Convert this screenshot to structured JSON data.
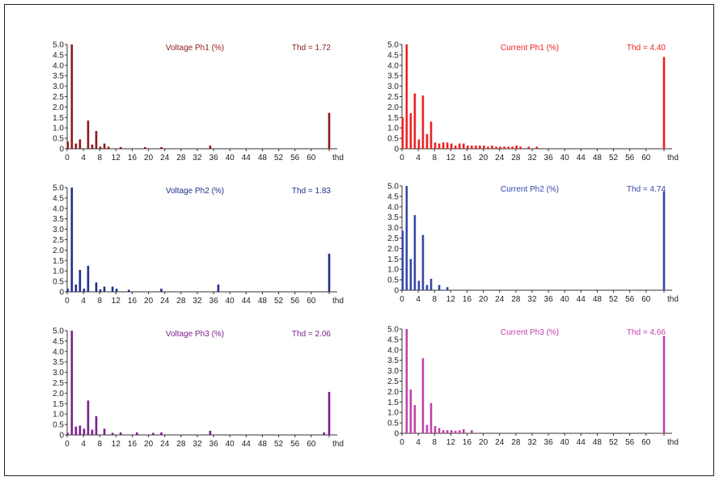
{
  "chart_data": [
    {
      "type": "bar",
      "id": "voltage-ph1",
      "title": "Voltage Ph1 (%)",
      "thd_label": "Thd = 1.72",
      "color": "#8b1a1a",
      "ylim": [
        0,
        5.0
      ],
      "yticks": [
        "0",
        "0.5",
        "1.0",
        "1.5",
        "2.0",
        "2.5",
        "3.0",
        "3.5",
        "4.0",
        "4.5",
        "5.0"
      ],
      "xticks": [
        "0",
        "4",
        "8",
        "12",
        "16",
        "20",
        "24",
        "28",
        "32",
        "36",
        "40",
        "44",
        "48",
        "52",
        "56",
        "60",
        "thd"
      ],
      "harmonics": [
        0,
        1,
        2,
        3,
        5,
        6,
        7,
        8,
        9,
        10,
        13,
        19,
        23,
        35
      ],
      "values": [
        0.35,
        5.0,
        0.25,
        0.45,
        1.35,
        0.2,
        0.85,
        0.1,
        0.25,
        0.1,
        0.08,
        0.08,
        0.08,
        0.15
      ],
      "thd": 1.72
    },
    {
      "type": "bar",
      "id": "current-ph1",
      "title": "Current Ph1 (%)",
      "thd_label": "Thd = 4.40",
      "color": "#ee2020",
      "ylim": [
        0,
        5.0
      ],
      "yticks": [
        "0",
        "0.5",
        "1.0",
        "1.5",
        "2.0",
        "2.5",
        "3.0",
        "3.5",
        "4.0",
        "4.5",
        "5.0"
      ],
      "xticks": [
        "0",
        "4",
        "8",
        "12",
        "16",
        "20",
        "24",
        "28",
        "32",
        "36",
        "40",
        "44",
        "48",
        "52",
        "56",
        "60",
        "thd"
      ],
      "harmonics": [
        0,
        1,
        2,
        3,
        4,
        5,
        6,
        7,
        8,
        9,
        10,
        11,
        12,
        13,
        14,
        15,
        16,
        17,
        18,
        19,
        20,
        21,
        22,
        23,
        24,
        25,
        26,
        27,
        28,
        29,
        31,
        33
      ],
      "values": [
        1.5,
        5.0,
        1.7,
        2.65,
        0.45,
        2.55,
        0.7,
        1.3,
        0.3,
        0.25,
        0.3,
        0.3,
        0.25,
        0.15,
        0.25,
        0.25,
        0.15,
        0.15,
        0.15,
        0.15,
        0.15,
        0.1,
        0.15,
        0.1,
        0.1,
        0.1,
        0.1,
        0.1,
        0.15,
        0.1,
        0.1,
        0.1
      ],
      "thd": 4.4
    },
    {
      "type": "bar",
      "id": "voltage-ph2",
      "title": "Voltage Ph2 (%)",
      "thd_label": "Thd = 1.83",
      "color": "#1f2f8a",
      "ylim": [
        0,
        5.0
      ],
      "yticks": [
        "0",
        "0.5",
        "1.0",
        "1.5",
        "2.0",
        "2.5",
        "3.0",
        "3.5",
        "4.0",
        "4.5",
        "5.0"
      ],
      "xticks": [
        "0",
        "4",
        "8",
        "12",
        "16",
        "20",
        "24",
        "28",
        "32",
        "36",
        "40",
        "44",
        "48",
        "52",
        "56",
        "60",
        "thd"
      ],
      "harmonics": [
        0,
        1,
        2,
        3,
        4,
        5,
        7,
        8,
        9,
        11,
        12,
        15,
        23,
        37
      ],
      "values": [
        0.15,
        5.0,
        0.35,
        1.05,
        0.15,
        1.25,
        0.45,
        0.12,
        0.25,
        0.25,
        0.15,
        0.1,
        0.15,
        0.35
      ],
      "thd": 1.83
    },
    {
      "type": "bar",
      "id": "current-ph2",
      "title": "Current Ph2 (%)",
      "thd_label": "Thd = 4.74",
      "color": "#3347a8",
      "ylim": [
        0,
        5.0
      ],
      "yticks": [
        "0",
        "0.5",
        "1.0",
        "1.5",
        "2.0",
        "2.5",
        "3.0",
        "3.5",
        "4.0",
        "4.5",
        "5.0"
      ],
      "xticks": [
        "0",
        "4",
        "8",
        "12",
        "16",
        "20",
        "24",
        "28",
        "32",
        "36",
        "40",
        "44",
        "48",
        "52",
        "56",
        "60",
        "thd"
      ],
      "harmonics": [
        0,
        1,
        2,
        3,
        4,
        5,
        6,
        7,
        9,
        11
      ],
      "values": [
        2.85,
        5.0,
        1.5,
        3.6,
        0.45,
        2.65,
        0.25,
        0.55,
        0.25,
        0.15
      ],
      "thd": 4.74
    },
    {
      "type": "bar",
      "id": "voltage-ph3",
      "title": "Voltage Ph3 (%)",
      "thd_label": "Thd = 2.06",
      "color": "#7a1f8a",
      "ylim": [
        0,
        5.0
      ],
      "yticks": [
        "0",
        "0.5",
        "1.0",
        "1.5",
        "2.0",
        "2.5",
        "3.0",
        "3.5",
        "4.0",
        "4.5",
        "5.0"
      ],
      "xticks": [
        "0",
        "4",
        "8",
        "12",
        "16",
        "20",
        "24",
        "28",
        "32",
        "36",
        "40",
        "44",
        "48",
        "52",
        "56",
        "60",
        "thd"
      ],
      "harmonics": [
        0,
        1,
        2,
        3,
        4,
        5,
        6,
        7,
        9,
        11,
        13,
        17,
        21,
        23,
        35,
        63
      ],
      "values": [
        0.1,
        5.0,
        0.4,
        0.45,
        0.3,
        1.65,
        0.25,
        0.9,
        0.3,
        0.1,
        0.12,
        0.12,
        0.1,
        0.12,
        0.2,
        0.12
      ],
      "thd": 2.06
    },
    {
      "type": "bar",
      "id": "current-ph3",
      "title": "Current Ph3 (%)",
      "thd_label": "Thd = 4.66",
      "color": "#c040a8",
      "ylim": [
        0,
        5.0
      ],
      "yticks": [
        "0",
        "0.5",
        "1.0",
        "1.5",
        "2.0",
        "2.5",
        "3.0",
        "3.5",
        "4.0",
        "4.5",
        "5.0"
      ],
      "xticks": [
        "0",
        "4",
        "8",
        "12",
        "16",
        "20",
        "24",
        "28",
        "32",
        "36",
        "40",
        "44",
        "48",
        "52",
        "56",
        "60",
        "thd"
      ],
      "harmonics": [
        1,
        2,
        3,
        5,
        6,
        7,
        8,
        9,
        10,
        11,
        12,
        13,
        14,
        15,
        17
      ],
      "values": [
        5.0,
        2.1,
        1.35,
        3.6,
        0.4,
        1.45,
        0.35,
        0.25,
        0.15,
        0.15,
        0.15,
        0.12,
        0.15,
        0.2,
        0.15
      ],
      "thd": 4.66
    }
  ]
}
